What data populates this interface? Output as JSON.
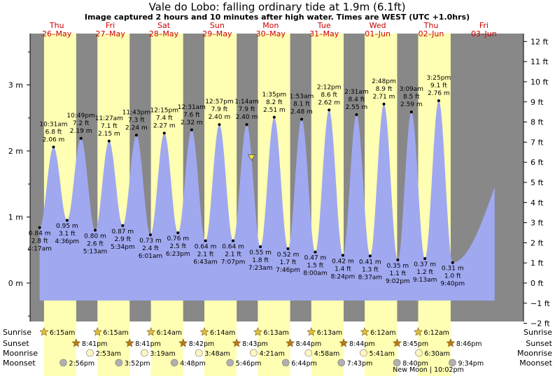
{
  "title": "Vale do Lobo: falling  ordinary tide at 1.9m (6.1ft)",
  "subtitle": "Image captured 2 hours and 10 minutes after high water. Times are WEST (UTC +1.0hrs)",
  "colors": {
    "night": "#888888",
    "day": "#ffffb3",
    "water": "#a0a8f0",
    "day_text": "#cc0000",
    "sunrise_icon": "#e0c040",
    "sunset_icon": "#b87a1a",
    "moonrise_icon": "#fff6c0",
    "moonset_icon": "#b0b0b0",
    "current_marker": "#f0e040"
  },
  "days": [
    {
      "dow": "Thu",
      "date": "26–May"
    },
    {
      "dow": "Fri",
      "date": "27–May"
    },
    {
      "dow": "Sat",
      "date": "28–May"
    },
    {
      "dow": "Sun",
      "date": "29–May"
    },
    {
      "dow": "Mon",
      "date": "30–May"
    },
    {
      "dow": "Tue",
      "date": "31–May"
    },
    {
      "dow": "Wed",
      "date": "01–Jun"
    },
    {
      "dow": "Thu",
      "date": "02–Jun"
    },
    {
      "dow": "Fri",
      "date": "03–Jun"
    }
  ],
  "chart_data": {
    "type": "area",
    "title": "Vale do Lobo: falling  ordinary tide at 1.9m (6.1ft)",
    "y_left_unit": "m",
    "y_right_unit": "ft",
    "y_left_ticks": [
      "0 m",
      "1 m",
      "2 m",
      "3 m"
    ],
    "y_right_ticks": [
      "−2 ft",
      "−1 ft",
      "0 ft",
      "1 ft",
      "2 ft",
      "3 ft",
      "4 ft",
      "5 ft",
      "6 ft",
      "7 ft",
      "8 ft",
      "9 ft",
      "10 ft",
      "11 ft",
      "12 ft"
    ],
    "ylim_m": [
      -0.6,
      3.7
    ],
    "current": {
      "height_m": 1.9
    },
    "tides": [
      {
        "day": 0,
        "time": "4:17 am",
        "m": "0.84 m",
        "ft": "2.8 ft",
        "h": 0.84,
        "type": "low"
      },
      {
        "day": 0,
        "time": "10:31 am",
        "m": "2.06 m",
        "ft": "6.8 ft",
        "h": 2.06,
        "type": "high"
      },
      {
        "day": 0,
        "time": "4:36 pm",
        "m": "0.95 m",
        "ft": "3.1 ft",
        "h": 0.95,
        "type": "low"
      },
      {
        "day": 0,
        "time": "10:49 pm",
        "m": "2.19 m",
        "ft": "7.2 ft",
        "h": 2.19,
        "type": "high"
      },
      {
        "day": 1,
        "time": "5:13 am",
        "m": "0.80 m",
        "ft": "2.6 ft",
        "h": 0.8,
        "type": "low"
      },
      {
        "day": 1,
        "time": "11:27 am",
        "m": "2.15 m",
        "ft": "7.1 ft",
        "h": 2.15,
        "type": "high"
      },
      {
        "day": 1,
        "time": "5:34 pm",
        "m": "0.87 m",
        "ft": "2.9 ft",
        "h": 0.87,
        "type": "low"
      },
      {
        "day": 1,
        "time": "11:43 pm",
        "m": "2.24 m",
        "ft": "7.3 ft",
        "h": 2.24,
        "type": "high"
      },
      {
        "day": 2,
        "time": "6:01 am",
        "m": "0.73 m",
        "ft": "2.4 ft",
        "h": 0.73,
        "type": "low"
      },
      {
        "day": 2,
        "time": "12:15 pm",
        "m": "2.27 m",
        "ft": "7.4 ft",
        "h": 2.27,
        "type": "high"
      },
      {
        "day": 2,
        "time": "6:23 pm",
        "m": "0.76 m",
        "ft": "2.5 ft",
        "h": 0.76,
        "type": "low"
      },
      {
        "day": 3,
        "time": "12:31 am",
        "m": "2.32 m",
        "ft": "7.6 ft",
        "h": 2.32,
        "type": "high"
      },
      {
        "day": 3,
        "time": "6:43 am",
        "m": "0.64 m",
        "ft": "2.1 ft",
        "h": 0.64,
        "type": "low"
      },
      {
        "day": 3,
        "time": "12:57 pm",
        "m": "2.40 m",
        "ft": "7.9 ft",
        "h": 2.4,
        "type": "high"
      },
      {
        "day": 3,
        "time": "7:07 pm",
        "m": "0.64 m",
        "ft": "2.1 ft",
        "h": 0.64,
        "type": "low"
      },
      {
        "day": 4,
        "time": "1:14 am",
        "m": "2.40 m",
        "ft": "7.9 ft",
        "h": 2.4,
        "type": "high"
      },
      {
        "day": 4,
        "time": "7:23 am",
        "m": "0.55 m",
        "ft": "1.8 ft",
        "h": 0.55,
        "type": "low"
      },
      {
        "day": 4,
        "time": "1:35 pm",
        "m": "2.51 m",
        "ft": "8.2 ft",
        "h": 2.51,
        "type": "high"
      },
      {
        "day": 4,
        "time": "7:46 pm",
        "m": "0.52 m",
        "ft": "1.7 ft",
        "h": 0.52,
        "type": "low"
      },
      {
        "day": 5,
        "time": "1:53 am",
        "m": "2.48 m",
        "ft": "8.1 ft",
        "h": 2.48,
        "type": "high"
      },
      {
        "day": 5,
        "time": "8:00 am",
        "m": "0.47 m",
        "ft": "1.5 ft",
        "h": 0.47,
        "type": "low"
      },
      {
        "day": 5,
        "time": "2:12 pm",
        "m": "2.62 m",
        "ft": "8.6 ft",
        "h": 2.62,
        "type": "high"
      },
      {
        "day": 5,
        "time": "8:24 pm",
        "m": "0.42 m",
        "ft": "1.4 ft",
        "h": 0.42,
        "type": "low"
      },
      {
        "day": 6,
        "time": "2:31 am",
        "m": "2.55 m",
        "ft": "8.4 ft",
        "h": 2.55,
        "type": "high"
      },
      {
        "day": 6,
        "time": "8:37 am",
        "m": "0.41 m",
        "ft": "1.3 ft",
        "h": 0.41,
        "type": "low"
      },
      {
        "day": 6,
        "time": "2:48 pm",
        "m": "2.71 m",
        "ft": "8.9 ft",
        "h": 2.71,
        "type": "high"
      },
      {
        "day": 6,
        "time": "9:02 pm",
        "m": "0.35 m",
        "ft": "1.1 ft",
        "h": 0.35,
        "type": "low"
      },
      {
        "day": 7,
        "time": "3:09 am",
        "m": "2.59 m",
        "ft": "8.5 ft",
        "h": 2.59,
        "type": "high"
      },
      {
        "day": 7,
        "time": "9:13 am",
        "m": "0.37 m",
        "ft": "1.2 ft",
        "h": 0.37,
        "type": "low"
      },
      {
        "day": 7,
        "time": "3:25 pm",
        "m": "2.76 m",
        "ft": "9.1 ft",
        "h": 2.76,
        "type": "high"
      },
      {
        "day": 7,
        "time": "9:40 pm",
        "m": "0.31 m",
        "ft": "1.0 ft",
        "h": 0.31,
        "type": "low"
      }
    ]
  },
  "rows": {
    "sunrise_label": "Sunrise",
    "sunset_label": "Sunset",
    "moonrise_label": "Moonrise",
    "moonset_label": "Moonset",
    "sunrise": [
      "6:15am",
      "6:15am",
      "6:14am",
      "6:14am",
      "6:13am",
      "6:13am",
      "6:12am",
      "6:12am"
    ],
    "sunset": [
      "8:41pm",
      "8:41pm",
      "8:42pm",
      "8:43pm",
      "8:44pm",
      "8:44pm",
      "8:45pm",
      "8:46pm"
    ],
    "moonrise": [
      "2:53am",
      "3:19am",
      "3:48am",
      "4:21am",
      "4:58am",
      "5:41am",
      "6:30am"
    ],
    "moonset": [
      "2:56pm",
      "3:52pm",
      "4:48pm",
      "5:46pm",
      "6:44pm",
      "7:43pm",
      "8:40pm",
      "9:34pm"
    ],
    "new_moon": "New Moon | 10:02pm"
  }
}
